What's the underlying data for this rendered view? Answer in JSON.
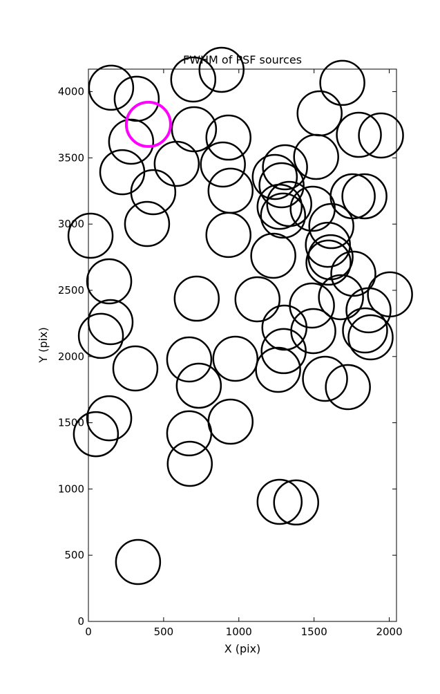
{
  "chart_data": {
    "type": "scatter",
    "title": "FWHM of PSF sources",
    "x_label": "X (pix)",
    "y_label": "Y (pix)",
    "xlim": [
      0,
      2048
    ],
    "ylim": [
      0,
      4170
    ],
    "xticks": [
      0,
      500,
      1000,
      1500,
      2000
    ],
    "yticks": [
      0,
      500,
      1000,
      1500,
      2000,
      2500,
      3000,
      3500,
      4000
    ],
    "series": [
      {
        "color": "#000000",
        "x": [
          151,
          321,
          697,
          885,
          284,
          702,
          931,
          225,
          587,
          894,
          431,
          945,
          390,
          14,
          931,
          1688,
          1537,
          1945,
          1798,
          1514,
          1307,
          1239,
          1284,
          1335,
          1271,
          1294,
          1491,
          1757,
          1835,
          1615,
          1592,
          1610,
          1596,
          1229,
          1761,
          138,
          720,
          1124,
          1486,
          1679,
          1862,
          2005,
          1303,
          147,
          83,
          1495,
          1839,
          1876,
          1298,
          312,
          670,
          977,
          734,
          1261,
          1573,
          1725,
          138,
          50,
          670,
          945,
          674,
          1271,
          1381,
          330
        ],
        "y": [
          4030,
          3946,
          4092,
          4165,
          3622,
          3716,
          3653,
          3392,
          3455,
          3450,
          3241,
          3252,
          3001,
          2912,
          2918,
          4066,
          3836,
          3669,
          3674,
          3507,
          3429,
          3356,
          3293,
          3152,
          3131,
          3064,
          3116,
          3210,
          3210,
          2985,
          2844,
          2750,
          2709,
          2761,
          2625,
          2568,
          2437,
          2432,
          2385,
          2448,
          2349,
          2469,
          2218,
          2260,
          2156,
          2192,
          2197,
          2145,
          2041,
          1910,
          1978,
          1983,
          1780,
          1900,
          1832,
          1769,
          1534,
          1414,
          1420,
          1508,
          1190,
          903,
          898,
          449
        ]
      },
      {
        "color": "#ff00ff",
        "x": [
          399
        ],
        "y": [
          3753
        ]
      }
    ]
  }
}
